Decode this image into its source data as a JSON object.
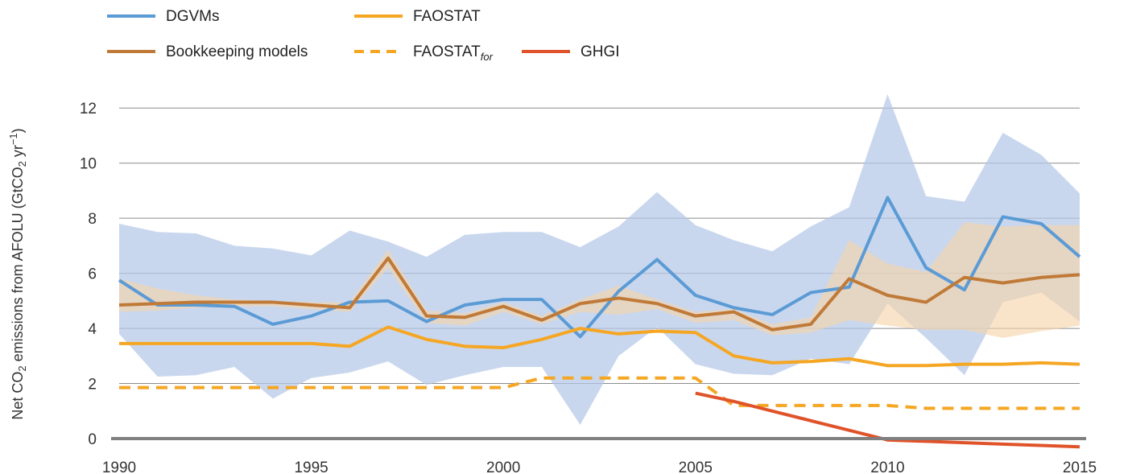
{
  "chart_data": {
    "type": "line",
    "xlabel": "",
    "ylabel": {
      "prefix": "Net CO",
      "sub": "2",
      "middle": " emissions from AFOLU (GtCO",
      "sub2": "2",
      "middle2": " yr",
      "sup": "−1",
      "suffix": ")"
    },
    "xlim": [
      1990,
      2015
    ],
    "ylim": [
      0,
      13
    ],
    "xticks": [
      "1990",
      "1995",
      "2000",
      "2005",
      "2010",
      "2015"
    ],
    "yticks": [
      "0",
      "2",
      "4",
      "6",
      "8",
      "10",
      "12"
    ],
    "grid": true,
    "legend_position": "top-left",
    "colors": {
      "dgvm": "#5b9bd5",
      "dgvm_band": "#b4c7e7",
      "bookkeeping": "#c07a38",
      "bookkeeping_band": "#f7d3a8",
      "faostat": "#f5a623",
      "faostat_for": "#f5a623",
      "ghgi": "#e0532a"
    },
    "legend": [
      {
        "key": "dgvm",
        "label": "DGVMs",
        "dashed": false
      },
      {
        "key": "faostat",
        "label": "FAOSTAT",
        "dashed": false
      },
      {
        "key": "bookkeeping",
        "label": "Bookkeeping models",
        "dashed": false
      },
      {
        "key": "faostat_for",
        "label": "FAOSTAT",
        "sub": "for",
        "dashed": true
      },
      {
        "key": "ghgi",
        "label": "GHGI",
        "dashed": false
      }
    ],
    "bands": [
      {
        "key": "dgvm_band",
        "x": [
          1990,
          1991,
          1992,
          1993,
          1994,
          1995,
          1996,
          1997,
          1998,
          1999,
          2000,
          2001,
          2002,
          2003,
          2004,
          2005,
          2006,
          2007,
          2008,
          2009,
          2010,
          2011,
          2012,
          2013,
          2014,
          2015
        ],
        "upper": [
          7.8,
          7.5,
          7.45,
          7.0,
          6.9,
          6.65,
          7.55,
          7.15,
          6.6,
          7.4,
          7.5,
          7.5,
          6.95,
          7.7,
          8.95,
          7.75,
          7.2,
          6.8,
          7.7,
          8.4,
          12.5,
          8.8,
          8.6,
          11.1,
          10.3,
          8.9
        ],
        "lower": [
          3.8,
          2.25,
          2.3,
          2.6,
          1.45,
          2.2,
          2.4,
          2.8,
          1.95,
          2.3,
          2.6,
          2.6,
          0.5,
          3.0,
          4.05,
          2.7,
          2.35,
          2.3,
          2.9,
          2.7,
          4.9,
          3.65,
          2.3,
          4.95,
          5.3,
          4.25
        ]
      },
      {
        "key": "bookkeeping_band",
        "x": [
          1990,
          1991,
          1992,
          1993,
          1994,
          1995,
          1996,
          1997,
          1998,
          1999,
          2000,
          2001,
          2002,
          2003,
          2004,
          2005,
          2006,
          2007,
          2008,
          2009,
          2010,
          2011,
          2012,
          2013,
          2014,
          2015
        ],
        "upper": [
          5.8,
          5.45,
          5.2,
          5.05,
          5.0,
          4.95,
          4.95,
          6.85,
          4.65,
          4.55,
          4.95,
          4.45,
          5.05,
          5.55,
          5.05,
          4.6,
          4.7,
          4.15,
          4.4,
          7.2,
          6.35,
          6.05,
          7.85,
          7.7,
          7.75,
          7.75
        ],
        "lower": [
          4.6,
          4.65,
          4.75,
          4.8,
          4.8,
          4.7,
          4.6,
          6.2,
          4.2,
          4.1,
          4.6,
          4.15,
          4.6,
          4.5,
          4.7,
          4.2,
          4.3,
          3.75,
          3.85,
          4.3,
          4.1,
          3.95,
          3.95,
          3.65,
          3.9,
          4.1
        ]
      }
    ],
    "series": [
      {
        "key": "dgvm",
        "dashed": false,
        "x": [
          1990,
          1991,
          1992,
          1993,
          1994,
          1995,
          1996,
          1997,
          1998,
          1999,
          2000,
          2001,
          2002,
          2003,
          2004,
          2005,
          2006,
          2007,
          2008,
          2009,
          2010,
          2011,
          2012,
          2013,
          2014,
          2015
        ],
        "y": [
          5.75,
          4.85,
          4.85,
          4.8,
          4.15,
          4.45,
          4.95,
          5.0,
          4.25,
          4.85,
          5.05,
          5.05,
          3.7,
          5.35,
          6.5,
          5.2,
          4.75,
          4.5,
          5.3,
          5.5,
          8.75,
          6.2,
          5.4,
          8.05,
          7.8,
          6.6
        ]
      },
      {
        "key": "bookkeeping",
        "dashed": false,
        "x": [
          1990,
          1991,
          1992,
          1993,
          1994,
          1995,
          1996,
          1997,
          1998,
          1999,
          2000,
          2001,
          2002,
          2003,
          2004,
          2005,
          2006,
          2007,
          2008,
          2009,
          2010,
          2011,
          2012,
          2013,
          2014,
          2015
        ],
        "y": [
          4.85,
          4.9,
          4.95,
          4.95,
          4.95,
          4.85,
          4.75,
          6.55,
          4.45,
          4.4,
          4.8,
          4.3,
          4.9,
          5.1,
          4.9,
          4.45,
          4.6,
          3.95,
          4.15,
          5.8,
          5.2,
          4.95,
          5.85,
          5.65,
          5.85,
          5.95
        ]
      },
      {
        "key": "faostat",
        "dashed": false,
        "x": [
          1990,
          1991,
          1992,
          1993,
          1994,
          1995,
          1996,
          1997,
          1998,
          1999,
          2000,
          2001,
          2002,
          2003,
          2004,
          2005,
          2006,
          2007,
          2008,
          2009,
          2010,
          2011,
          2012,
          2013,
          2014,
          2015
        ],
        "y": [
          3.45,
          3.45,
          3.45,
          3.45,
          3.45,
          3.45,
          3.35,
          4.05,
          3.6,
          3.35,
          3.3,
          3.6,
          4.0,
          3.8,
          3.9,
          3.85,
          3.0,
          2.75,
          2.8,
          2.9,
          2.65,
          2.65,
          2.7,
          2.7,
          2.75,
          2.7
        ]
      },
      {
        "key": "faostat_for",
        "dashed": true,
        "x": [
          1990,
          1991,
          1992,
          1993,
          1994,
          1995,
          1996,
          1997,
          1998,
          1999,
          2000,
          2001,
          2002,
          2003,
          2004,
          2005,
          2006,
          2007,
          2008,
          2009,
          2010,
          2011,
          2012,
          2013,
          2014,
          2015
        ],
        "y": [
          1.85,
          1.85,
          1.85,
          1.85,
          1.85,
          1.85,
          1.85,
          1.85,
          1.85,
          1.85,
          1.85,
          2.2,
          2.2,
          2.2,
          2.2,
          2.2,
          1.2,
          1.2,
          1.2,
          1.2,
          1.2,
          1.1,
          1.1,
          1.1,
          1.1,
          1.1
        ]
      },
      {
        "key": "ghgi",
        "dashed": false,
        "x": [
          2005,
          2006,
          2007,
          2008,
          2009,
          2010,
          2011,
          2012,
          2013,
          2014,
          2015
        ],
        "y": [
          1.65,
          1.35,
          1.0,
          0.65,
          0.3,
          -0.05,
          -0.1,
          -0.15,
          -0.2,
          -0.25,
          -0.3
        ]
      }
    ]
  }
}
